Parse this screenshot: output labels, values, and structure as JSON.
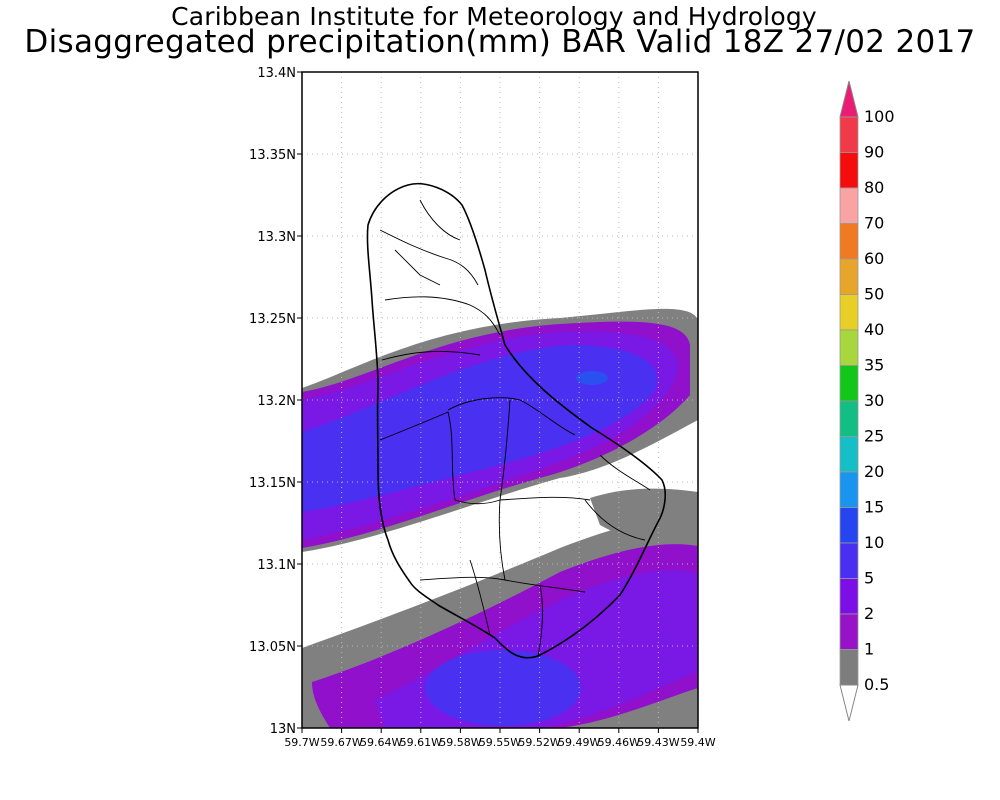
{
  "header": {
    "institute": "Caribbean Institute for Meteorology and Hydrology",
    "product": "Disaggregated precipitation(mm) BAR Valid 18Z 27/02 2017"
  },
  "map": {
    "region": "Barbados",
    "lat_labels": [
      "13.4N",
      "13.35N",
      "13.3N",
      "13.25N",
      "13.2N",
      "13.15N",
      "13.1N",
      "13.05N",
      "13N"
    ],
    "lon_labels": [
      "59.7W",
      "59.67W",
      "59.64W",
      "59.61W",
      "59.58W",
      "59.55W",
      "59.52W",
      "59.49W",
      "59.46W",
      "59.43W",
      "59.4W"
    ],
    "gridlines": true
  },
  "colorbar": {
    "labels": [
      "100",
      "90",
      "80",
      "70",
      "60",
      "50",
      "40",
      "35",
      "30",
      "25",
      "20",
      "15",
      "10",
      "5",
      "2",
      "1",
      "0.5"
    ],
    "colors": [
      "#f03a49",
      "#f50d0d",
      "#faa3a3",
      "#ef7a23",
      "#e8a52b",
      "#e7cf27",
      "#a7d73c",
      "#12c61a",
      "#13be85",
      "#16bec7",
      "#1994ef",
      "#2545f0",
      "#4a2ff0",
      "#7b0fe6",
      "#9812c8",
      "#7d7d7d"
    ],
    "top_color": "#ea1c74"
  },
  "legend": {
    "precip": {
      "grey": "#808080",
      "purple_dark": "#9010cc",
      "violet": "#7a18e6",
      "blue": "#4a30f0",
      "blue_core": "#2a50f0"
    }
  }
}
